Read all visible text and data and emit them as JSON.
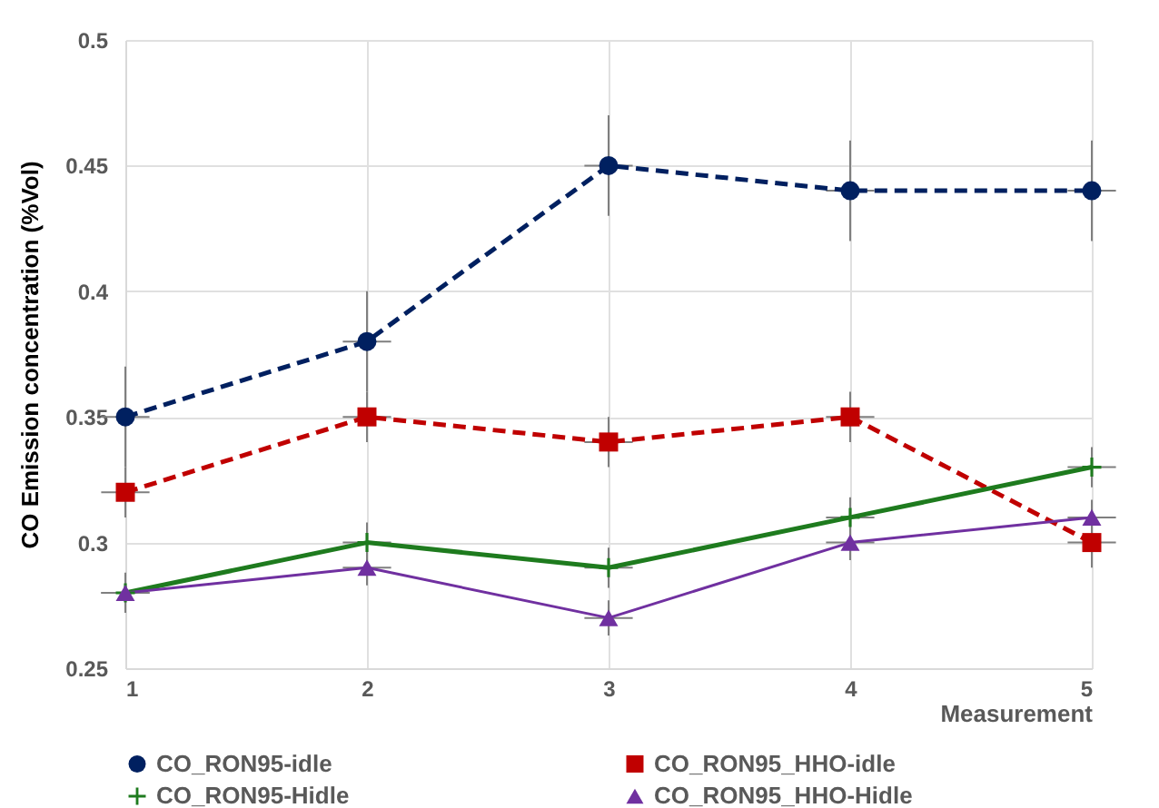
{
  "chart_data": {
    "type": "line",
    "xlabel": "Measurement",
    "ylabel": "CO Emission concentration (%Vol)",
    "x": [
      1,
      2,
      3,
      4,
      5
    ],
    "xlim": [
      1,
      5
    ],
    "xticks": [
      1,
      2,
      3,
      4,
      5
    ],
    "ylim": [
      0.25,
      0.5
    ],
    "yticks": [
      0.25,
      0.3,
      0.35,
      0.4,
      0.45,
      0.5
    ],
    "grid": true,
    "legend": "bottom",
    "series": [
      {
        "name": "CO_RON95-idle",
        "color": "#002060",
        "values": [
          0.35,
          0.38,
          0.45,
          0.44,
          0.44
        ],
        "errors": [
          0.02,
          0.02,
          0.02,
          0.02,
          0.02
        ],
        "xerrors": [
          0.1,
          0.1,
          0.1,
          0.1,
          0.1
        ],
        "marker": "circle",
        "line_style": "dashed"
      },
      {
        "name": "CO_RON95_HHO-idle",
        "color": "#c00000",
        "values": [
          0.32,
          0.35,
          0.34,
          0.35,
          0.3
        ],
        "errors": [
          0.01,
          0.01,
          0.01,
          0.01,
          0.01
        ],
        "xerrors": [
          0.1,
          0.1,
          0.1,
          0.1,
          0.1
        ],
        "marker": "square",
        "line_style": "dashed"
      },
      {
        "name": "CO_RON95-Hidle",
        "color": "#1e7b1e",
        "values": [
          0.28,
          0.3,
          0.29,
          0.31,
          0.33
        ],
        "errors": [
          0.008,
          0.008,
          0.008,
          0.008,
          0.008
        ],
        "xerrors": [
          0.1,
          0.1,
          0.1,
          0.1,
          0.1
        ],
        "marker": "cross",
        "line_style": "solid"
      },
      {
        "name": "CO_RON95_HHO-Hidle",
        "color": "#7030a0",
        "values": [
          0.28,
          0.29,
          0.27,
          0.3,
          0.31
        ],
        "errors": [
          0.007,
          0.007,
          0.007,
          0.007,
          0.007
        ],
        "xerrors": [
          0.1,
          0.1,
          0.1,
          0.1,
          0.1
        ],
        "marker": "triangle",
        "line_style": "solid"
      }
    ]
  }
}
